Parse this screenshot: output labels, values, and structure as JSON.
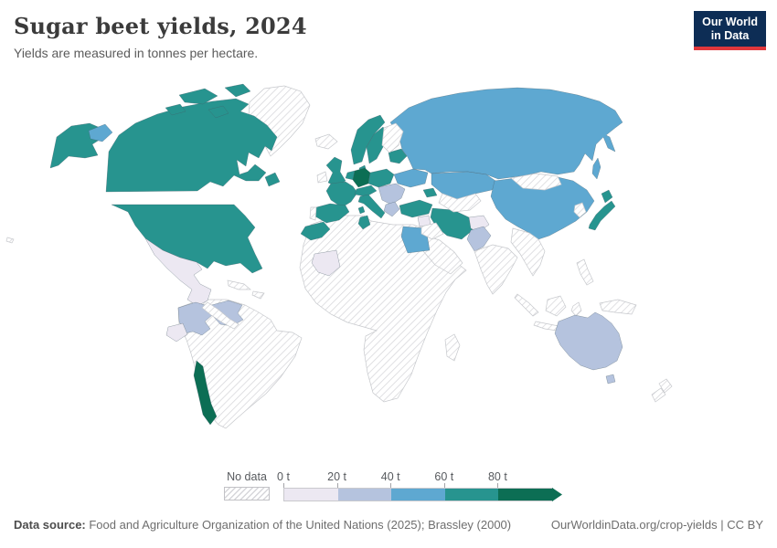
{
  "header": {
    "logo_line1": "Our World",
    "logo_line2": "in Data",
    "logo_bg": "#0d2d55",
    "logo_accent": "#e0373c"
  },
  "legend": {
    "no_data_label": "No data",
    "tick_labels": [
      "0 t",
      "20 t",
      "40 t",
      "60 t",
      "80 t"
    ],
    "bin_colors": [
      "#ece8f2",
      "#b5c3de",
      "#5ea8d1",
      "#27948f",
      "#0c6e54"
    ],
    "hatch_color": "#d6d6da"
  },
  "footer": {
    "data_source_label": "Data source:",
    "data_source_text": " Food and Agriculture Organization of the United Nations (2025); Brassley (2000)",
    "attribution": "OurWorldinData.org/crop-yields | CC BY"
  },
  "chart_data": {
    "type": "heatmap",
    "subtype": "choropleth-world-map",
    "title": "Sugar beet yields, 2024",
    "subtitle": "Yields are measured in tonnes per hectare.",
    "unit": "tonnes per hectare",
    "year": 2024,
    "legend_bins": [
      "0-20 t",
      "20-40 t",
      "40-60 t",
      "60-80 t",
      "80+ t"
    ],
    "legend_position": "bottom",
    "countries": [
      {
        "id": "united-states",
        "name": "United States",
        "bin": "60-80 t",
        "bin_index": 3
      },
      {
        "id": "canada",
        "name": "Canada",
        "bin": "60-80 t",
        "bin_index": 3
      },
      {
        "id": "mexico",
        "name": "Mexico",
        "bin": "0-20 t",
        "bin_index": 0
      },
      {
        "id": "colombia",
        "name": "Colombia",
        "bin": "20-40 t",
        "bin_index": 1
      },
      {
        "id": "venezuela",
        "name": "Venezuela",
        "bin": "20-40 t",
        "bin_index": 1
      },
      {
        "id": "ecuador",
        "name": "Ecuador",
        "bin": "0-20 t",
        "bin_index": 0
      },
      {
        "id": "chile",
        "name": "Chile",
        "bin": "80+ t",
        "bin_index": 4
      },
      {
        "id": "united-kingdom",
        "name": "United Kingdom",
        "bin": "60-80 t",
        "bin_index": 3
      },
      {
        "id": "france",
        "name": "France",
        "bin": "60-80 t",
        "bin_index": 3
      },
      {
        "id": "spain",
        "name": "Spain",
        "bin": "60-80 t",
        "bin_index": 3
      },
      {
        "id": "norway",
        "name": "Norway",
        "bin": "60-80 t",
        "bin_index": 3
      },
      {
        "id": "sweden",
        "name": "Sweden",
        "bin": "60-80 t",
        "bin_index": 3
      },
      {
        "id": "denmark",
        "name": "Denmark",
        "bin": "60-80 t",
        "bin_index": 3
      },
      {
        "id": "netherlands",
        "name": "Netherlands",
        "bin": "60-80 t",
        "bin_index": 3
      },
      {
        "id": "germany",
        "name": "Germany",
        "bin": "80+ t",
        "bin_index": 4
      },
      {
        "id": "austria",
        "name": "Austria",
        "bin": "60-80 t",
        "bin_index": 3
      },
      {
        "id": "poland",
        "name": "Poland",
        "bin": "60-80 t",
        "bin_index": 3
      },
      {
        "id": "italy",
        "name": "Italy",
        "bin": "60-80 t",
        "bin_index": 3
      },
      {
        "id": "belarus",
        "name": "Belarus",
        "bin": "60-80 t",
        "bin_index": 3
      },
      {
        "id": "ukraine",
        "name": "Ukraine",
        "bin": "40-60 t",
        "bin_index": 2
      },
      {
        "id": "romania",
        "name": "Romania",
        "bin": "20-40 t",
        "bin_index": 1
      },
      {
        "id": "greece",
        "name": "Greece",
        "bin": "20-40 t",
        "bin_index": 1
      },
      {
        "id": "russia",
        "name": "Russia",
        "bin": "40-60 t",
        "bin_index": 2
      },
      {
        "id": "kazakhstan",
        "name": "Kazakhstan",
        "bin": "40-60 t",
        "bin_index": 2
      },
      {
        "id": "azerbaijan",
        "name": "Azerbaijan",
        "bin": "60-80 t",
        "bin_index": 3
      },
      {
        "id": "turkey",
        "name": "Turkey",
        "bin": "60-80 t",
        "bin_index": 3
      },
      {
        "id": "syria",
        "name": "Syria",
        "bin": "0-20 t",
        "bin_index": 0
      },
      {
        "id": "iran",
        "name": "Iran",
        "bin": "60-80 t",
        "bin_index": 3
      },
      {
        "id": "afghanistan",
        "name": "Afghanistan",
        "bin": "0-20 t",
        "bin_index": 0
      },
      {
        "id": "pakistan",
        "name": "Pakistan",
        "bin": "20-40 t",
        "bin_index": 1
      },
      {
        "id": "china",
        "name": "China",
        "bin": "40-60 t",
        "bin_index": 2
      },
      {
        "id": "japan",
        "name": "Japan",
        "bin": "60-80 t",
        "bin_index": 3
      },
      {
        "id": "morocco",
        "name": "Morocco",
        "bin": "60-80 t",
        "bin_index": 3
      },
      {
        "id": "tunisia",
        "name": "Tunisia",
        "bin": "60-80 t",
        "bin_index": 3
      },
      {
        "id": "egypt",
        "name": "Egypt",
        "bin": "40-60 t",
        "bin_index": 2
      },
      {
        "id": "mali",
        "name": "Mali",
        "bin": "0-20 t",
        "bin_index": 0
      },
      {
        "id": "australia",
        "name": "Australia",
        "bin": "20-40 t",
        "bin_index": 1
      }
    ],
    "no_data_regions": [
      "Greenland",
      "Iceland",
      "Ireland",
      "Portugal",
      "Finland",
      "Brazil",
      "Argentina",
      "Peru",
      "Bolivia",
      "Central America",
      "Most of Africa",
      "Saudi Arabia",
      "Iraq",
      "Central Asia",
      "India",
      "Mongolia",
      "Korea",
      "Southeast Asia",
      "Indonesia",
      "New Zealand"
    ]
  }
}
